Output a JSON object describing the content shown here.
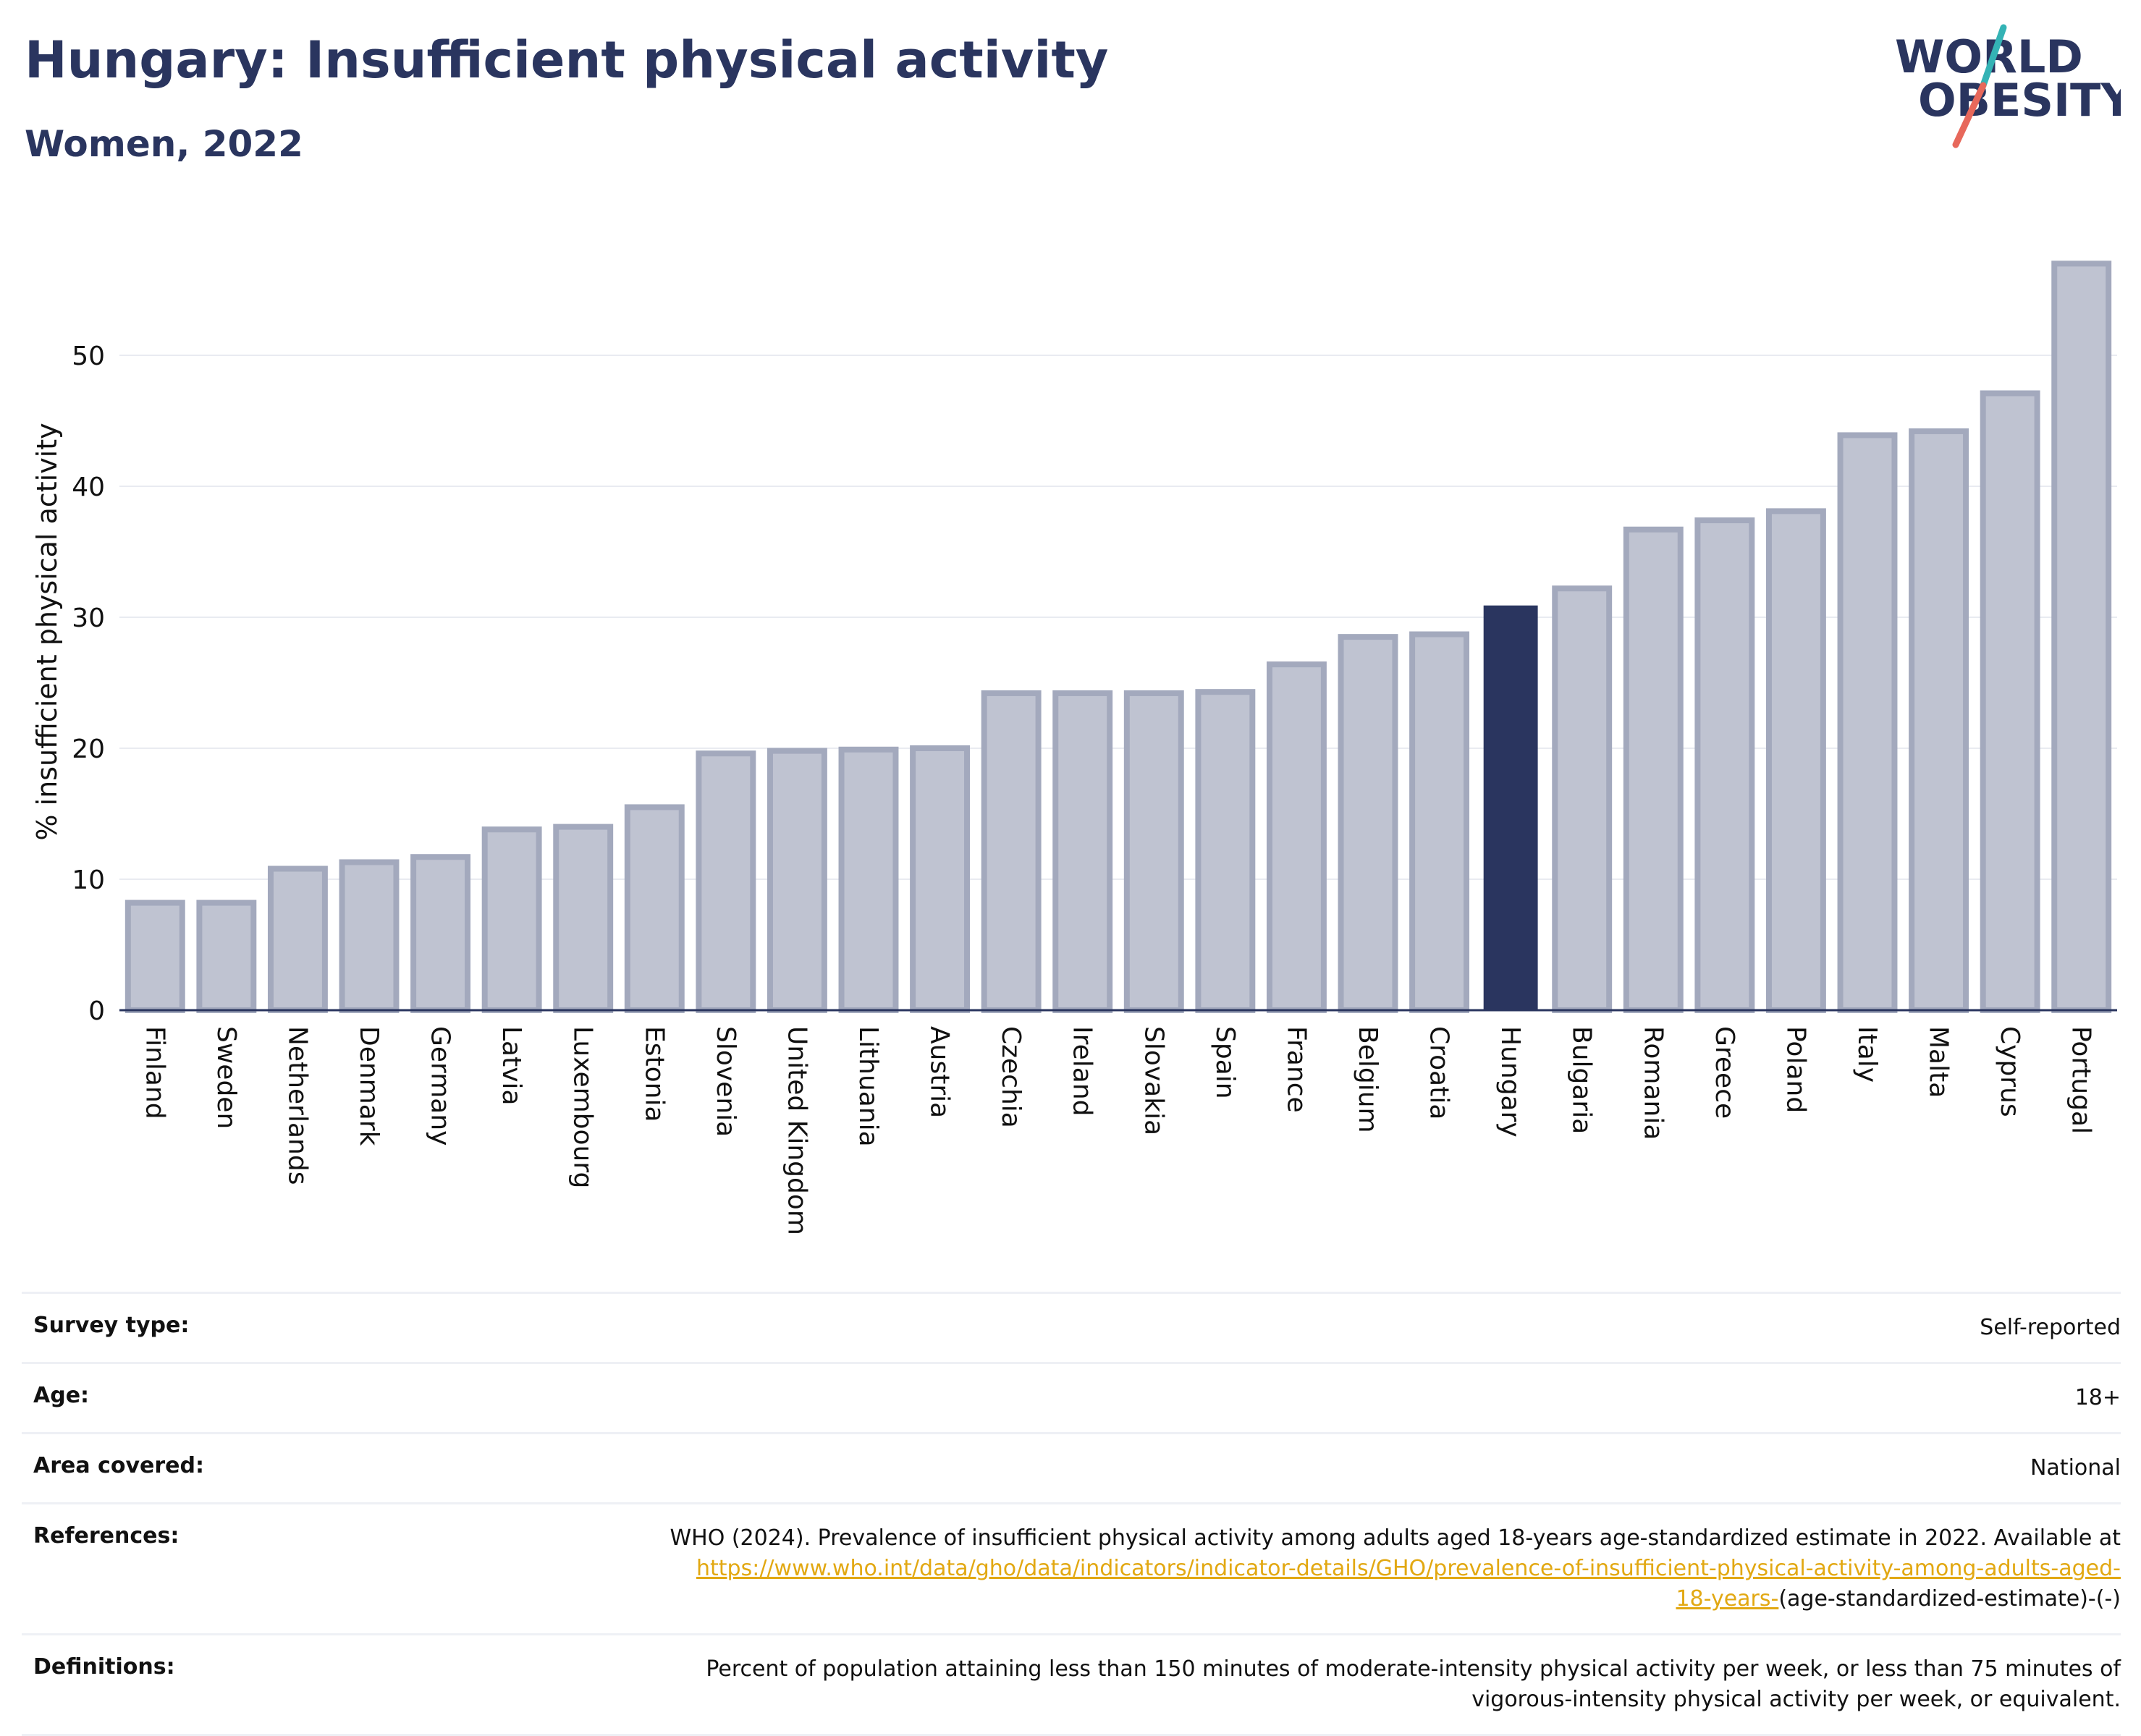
{
  "header": {
    "title": "Hungary: Insufficient physical activity",
    "subtitle": "Women, 2022"
  },
  "logo": {
    "line1": "WORLD",
    "line2": "OBESITY",
    "colors": {
      "text": "#2a355f",
      "slash_teal": "#34b3b5",
      "slash_coral": "#e7685b"
    }
  },
  "chart_data": {
    "type": "bar",
    "title": "Hungary: Insufficient physical activity",
    "subtitle": "Women, 2022",
    "ylabel": "% insufficient physical activity",
    "xlabel": "",
    "ylim": [
      0,
      60
    ],
    "yticks": [
      0,
      10,
      20,
      30,
      40,
      50
    ],
    "grid": true,
    "highlight": "Hungary",
    "colors": {
      "bar": "#bfc3d1",
      "bar_stroke": "#a3a9bd",
      "highlight": "#2a355f",
      "grid": "#e9ebf1",
      "axis": "#2a355f"
    },
    "categories": [
      "Finland",
      "Sweden",
      "Netherlands",
      "Denmark",
      "Germany",
      "Latvia",
      "Luxembourg",
      "Estonia",
      "Slovenia",
      "United Kingdom",
      "Lithuania",
      "Austria",
      "Czechia",
      "Ireland",
      "Slovakia",
      "Spain",
      "France",
      "Belgium",
      "Croatia",
      "Hungary",
      "Bulgaria",
      "Romania",
      "Greece",
      "Poland",
      "Italy",
      "Malta",
      "Cyprus",
      "Portugal"
    ],
    "values": [
      8.2,
      8.2,
      10.8,
      11.3,
      11.7,
      13.8,
      14.0,
      15.5,
      19.6,
      19.8,
      19.9,
      20.0,
      24.2,
      24.2,
      24.2,
      24.3,
      26.4,
      28.5,
      28.7,
      30.9,
      32.2,
      36.7,
      37.4,
      38.1,
      43.9,
      44.2,
      47.1,
      57.0
    ]
  },
  "info": {
    "rows": [
      {
        "label": "Survey type:",
        "value": "Self-reported"
      },
      {
        "label": "Age:",
        "value": "18+"
      },
      {
        "label": "Area covered:",
        "value": "National"
      }
    ],
    "references": {
      "label": "References:",
      "text": "WHO (2024). Prevalence of insufficient physical activity among adults aged 18-years age-standardized estimate in 2022. Available at",
      "link_part1": "https://www.who.int/data/gho/data/indicators/indicator-details/GHO/prevalence-of-insufficient-physical-activity-among-adults-aged-",
      "link_part2": "18-years-",
      "suffix": "(age-standardized-estimate)-(-)"
    },
    "definitions": {
      "label": "Definitions:",
      "line1": "Percent of population attaining less than 150 minutes of moderate-intensity physical activity per week, or less than 75 minutes of",
      "line2": "vigorous-intensity physical activity per week, or equivalent."
    }
  }
}
